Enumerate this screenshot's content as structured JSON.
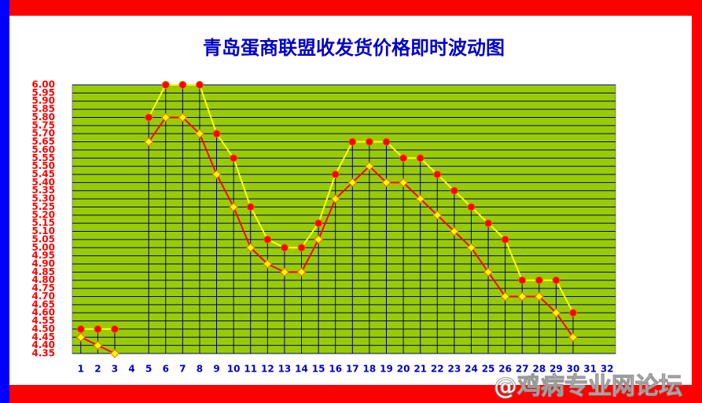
{
  "chart_data": {
    "type": "line",
    "title": "青岛蛋商联盟收发货价格即时波动图",
    "categories": [
      "1",
      "2",
      "3",
      "4",
      "5",
      "6",
      "7",
      "8",
      "9",
      "10",
      "11",
      "12",
      "13",
      "14",
      "15",
      "16",
      "17",
      "18",
      "19",
      "20",
      "21",
      "22",
      "23",
      "24",
      "25",
      "26",
      "27",
      "28",
      "29",
      "30",
      "31",
      "32"
    ],
    "series": [
      {
        "color": "#ffff00",
        "marker": "circle",
        "marker_color": "#ff0000",
        "values": [
          4.5,
          4.5,
          4.5,
          null,
          5.8,
          6.0,
          6.0,
          6.0,
          5.7,
          5.55,
          5.25,
          5.05,
          5.0,
          5.0,
          5.15,
          5.45,
          5.65,
          5.65,
          5.65,
          5.55,
          5.55,
          5.45,
          5.35,
          5.25,
          5.15,
          5.05,
          4.8,
          4.8,
          4.8,
          4.6,
          null,
          null
        ]
      },
      {
        "color": "#ff0000",
        "marker": "diamond",
        "marker_color": "#ffff00",
        "values": [
          4.45,
          4.4,
          4.35,
          null,
          5.65,
          5.8,
          5.8,
          5.7,
          5.45,
          5.25,
          5.0,
          4.9,
          4.85,
          4.85,
          5.05,
          5.3,
          5.4,
          5.5,
          5.4,
          5.4,
          5.3,
          5.2,
          5.1,
          5.0,
          4.85,
          4.7,
          4.7,
          4.7,
          4.6,
          4.45,
          null,
          null
        ]
      }
    ],
    "ylim": [
      4.35,
      6.0
    ],
    "yticks": [
      {
        "value": 6.0,
        "label": "6.00"
      },
      {
        "value": 5.95,
        "label": "5.95"
      },
      {
        "value": 5.9,
        "label": "5.90"
      },
      {
        "value": 5.85,
        "label": "5.85"
      },
      {
        "value": 5.8,
        "label": "5.80"
      },
      {
        "value": 5.75,
        "label": "5.75"
      },
      {
        "value": 5.7,
        "label": "5.70"
      },
      {
        "value": 5.65,
        "label": "5.65"
      },
      {
        "value": 5.6,
        "label": "5.60"
      },
      {
        "value": 5.55,
        "label": "5.55"
      },
      {
        "value": 5.5,
        "label": "5.50"
      },
      {
        "value": 5.45,
        "label": "5.45"
      },
      {
        "value": 5.4,
        "label": "5.40"
      },
      {
        "value": 5.35,
        "label": "5.35"
      },
      {
        "value": 5.3,
        "label": "5.30"
      },
      {
        "value": 5.25,
        "label": "5.25"
      },
      {
        "value": 5.2,
        "label": "5.20"
      },
      {
        "value": 5.15,
        "label": "5.15"
      },
      {
        "value": 5.1,
        "label": "5.10"
      },
      {
        "value": 5.05,
        "label": "5.05"
      },
      {
        "value": 5.0,
        "label": "5.00"
      },
      {
        "value": 4.95,
        "label": "4.95"
      },
      {
        "value": 4.9,
        "label": "4.90"
      },
      {
        "value": 4.85,
        "label": "4.85"
      },
      {
        "value": 4.8,
        "label": "4.80"
      },
      {
        "value": 4.75,
        "label": "4.75"
      },
      {
        "value": 4.7,
        "label": "4.70"
      },
      {
        "value": 4.65,
        "label": "4.65"
      },
      {
        "value": 4.6,
        "label": "4.60"
      },
      {
        "value": 4.55,
        "label": "4.55"
      },
      {
        "value": 4.5,
        "label": "4.50"
      },
      {
        "value": 4.45,
        "label": "4.45"
      },
      {
        "value": 4.4,
        "label": "4.40"
      },
      {
        "value": 4.35,
        "label": "4.35"
      }
    ],
    "grid": true,
    "plot_background": "#99cc00",
    "grid_color": "#000080",
    "drop_lines": true
  },
  "watermark": "@鸡病专业网论坛"
}
